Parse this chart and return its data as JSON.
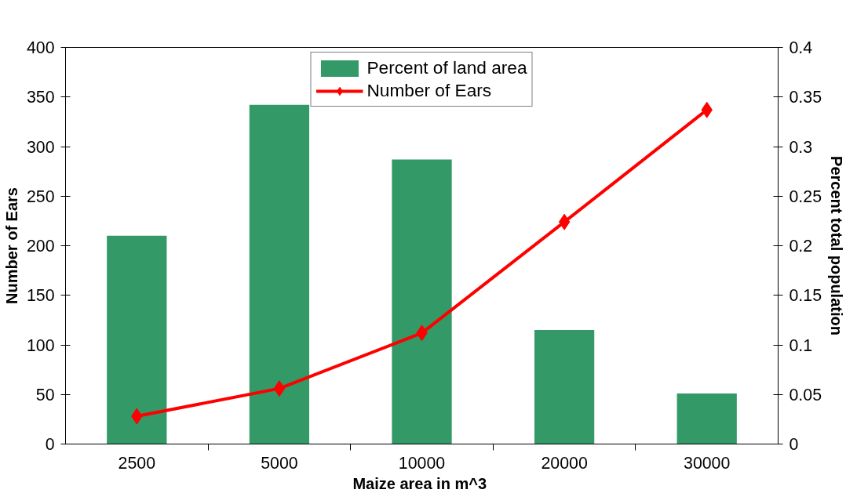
{
  "chart_data": {
    "type": "bar",
    "xlabel": "Maize area  in m^3",
    "ylabel": "Number of Ears",
    "y2label": "Percent total population",
    "categories": [
      "2500",
      "5000",
      "10000",
      "20000",
      "30000"
    ],
    "series": [
      {
        "name": "Percent of land area",
        "axis": "y2",
        "color": "#339966",
        "values": [
          0.21,
          0.342,
          0.287,
          0.115,
          0.051
        ]
      },
      {
        "name": "Number of Ears",
        "type": "line",
        "color": "#ff0000",
        "marker": "diamond",
        "values": [
          28,
          56,
          112,
          224,
          337
        ]
      }
    ],
    "ylim": [
      0,
      400
    ],
    "yticks": [
      0,
      50,
      100,
      150,
      200,
      250,
      300,
      350,
      400
    ],
    "y2lim": [
      0,
      0.4
    ],
    "y2ticks": [
      0,
      0.05,
      0.1,
      0.15,
      0.2,
      0.25,
      0.3,
      0.35,
      0.4
    ],
    "grid": false,
    "legend": "top"
  }
}
